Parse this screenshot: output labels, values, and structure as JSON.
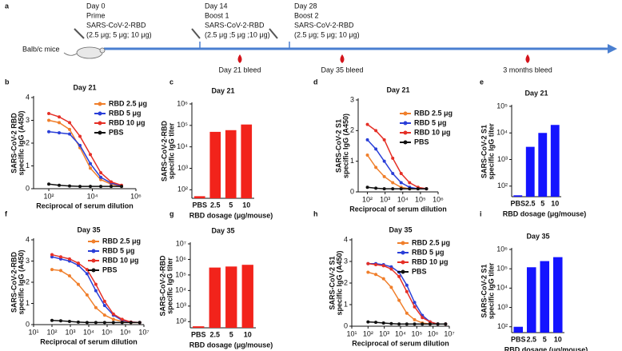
{
  "timeline": {
    "panel": "a",
    "subject": "Balb/c mice",
    "events": [
      {
        "lines": [
          "Day 0",
          "Prime",
          "SARS-CoV-2-RBD",
          "(2.5 μg; 5 μg; 10 μg)"
        ]
      },
      {
        "lines": [
          "Day 14",
          "Boost 1",
          "SARS-CoV-2-RBD",
          "(2.5 μg ;5 μg ;10 μg)"
        ]
      },
      {
        "lines": [
          "Day 28",
          "Boost 2",
          "SARS-CoV-2-RBD",
          "(2.5 μg; 5 μg; 10 μg)"
        ]
      }
    ],
    "bleeds": [
      "Day 21 bleed",
      "Day 35 bleed",
      "3 months bleed"
    ]
  },
  "chart_data": [
    {
      "type": "line",
      "panel": "b",
      "title": "Day 21",
      "ylabel": [
        "SARS-CoV-2 RBD",
        "specific IgG (A450)"
      ],
      "xlabel": "Reciprocal of serum dilution",
      "xscale": "log",
      "xlim": [
        20,
        1000000
      ],
      "xticks": [
        {
          "value": 100,
          "label": "10²"
        },
        {
          "value": 10000,
          "label": "10⁴"
        },
        {
          "value": 1000000,
          "label": "10⁶"
        }
      ],
      "ylim": [
        0,
        4
      ],
      "yticks": [
        0,
        1,
        2,
        3,
        4
      ],
      "x": [
        100,
        300,
        900,
        2700,
        8100,
        24300,
        72900,
        218700
      ],
      "series": [
        {
          "name": "RBD 2.5 μg",
          "color": "#f07f2b",
          "values": [
            3.0,
            2.9,
            2.6,
            1.8,
            0.9,
            0.4,
            0.2,
            0.1
          ]
        },
        {
          "name": "RBD 5 μg",
          "color": "#2a3fd8",
          "values": [
            2.5,
            2.45,
            2.4,
            1.9,
            1.1,
            0.5,
            0.25,
            0.12
          ]
        },
        {
          "name": "RBD 10 μg",
          "color": "#e53027",
          "values": [
            3.3,
            3.15,
            2.9,
            2.3,
            1.5,
            0.7,
            0.3,
            0.15
          ]
        },
        {
          "name": "PBS",
          "color": "#111111",
          "values": [
            0.2,
            0.15,
            0.12,
            0.1,
            0.1,
            0.1,
            0.1,
            0.1
          ]
        }
      ]
    },
    {
      "type": "bar",
      "panel": "c",
      "title": "Day 21",
      "ylabel": [
        "SARS-CoV-2-RBD",
        "specific IgG titer"
      ],
      "xlabel": "RBD dosage (μg/mouse)",
      "yscale": "log",
      "ylim": [
        40,
        1000000
      ],
      "yticks": [
        {
          "value": 100,
          "label": "10²"
        },
        {
          "value": 1000,
          "label": "10³"
        },
        {
          "value": 10000,
          "label": "10⁴"
        },
        {
          "value": 100000,
          "label": "10⁵"
        },
        {
          "value": 1000000,
          "label": "10⁶"
        }
      ],
      "categories": [
        "PBS",
        "2.5",
        "5",
        "10"
      ],
      "values": [
        50,
        50000,
        60000,
        110000
      ],
      "color": "#f2231b"
    },
    {
      "type": "line",
      "panel": "d",
      "title": "Day 21",
      "ylabel": [
        "SARS-CoV-2 S1",
        "specific IgG (A450)"
      ],
      "xlabel": "Reciprocal of serum dilution",
      "xscale": "log",
      "xlim": [
        30,
        1000000
      ],
      "xticks": [
        {
          "value": 100,
          "label": "10²"
        },
        {
          "value": 1000,
          "label": "10³"
        },
        {
          "value": 10000,
          "label": "10⁴"
        },
        {
          "value": 100000,
          "label": "10⁵"
        },
        {
          "value": 1000000,
          "label": "10⁶"
        }
      ],
      "ylim": [
        0,
        3
      ],
      "yticks": [
        0,
        1,
        2,
        3
      ],
      "x": [
        100,
        300,
        900,
        2700,
        8100,
        24300,
        72900,
        218700
      ],
      "series": [
        {
          "name": "RBD 2.5 μg",
          "color": "#f07f2b",
          "values": [
            1.2,
            0.8,
            0.5,
            0.3,
            0.15,
            0.1,
            0.1,
            0.1
          ]
        },
        {
          "name": "RBD 5 μg",
          "color": "#2a3fd8",
          "values": [
            1.7,
            1.4,
            1.0,
            0.6,
            0.3,
            0.15,
            0.1,
            0.1
          ]
        },
        {
          "name": "RBD 10 μg",
          "color": "#e53027",
          "values": [
            2.2,
            2.0,
            1.7,
            1.1,
            0.6,
            0.3,
            0.15,
            0.1
          ]
        },
        {
          "name": "PBS",
          "color": "#111111",
          "values": [
            0.15,
            0.12,
            0.1,
            0.1,
            0.1,
            0.1,
            0.1,
            0.1
          ]
        }
      ]
    },
    {
      "type": "bar",
      "panel": "e",
      "title": "Day 21",
      "ylabel": [
        "SARS-CoV-2 S1",
        "specific IgG titer"
      ],
      "xlabel": "RBD dosage (μg/mouse)",
      "yscale": "log",
      "ylim": [
        40,
        100000
      ],
      "yticks": [
        {
          "value": 100,
          "label": "10²"
        },
        {
          "value": 1000,
          "label": "10³"
        },
        {
          "value": 10000,
          "label": "10⁴"
        },
        {
          "value": 100000,
          "label": "10⁵"
        }
      ],
      "categories": [
        "PBS",
        "2.5",
        "5",
        "10"
      ],
      "values": [
        45,
        3000,
        10000,
        20000
      ],
      "color": "#1414ff"
    },
    {
      "type": "line",
      "panel": "f",
      "title": "Day 35",
      "ylabel": [
        "SARS-CoV-2-RBD",
        "specific IgG (A450)"
      ],
      "xlabel": "Reciprocal of serum dilution",
      "xscale": "log",
      "xlim": [
        10,
        10000000
      ],
      "xticks": [
        {
          "value": 10,
          "label": "10¹"
        },
        {
          "value": 100,
          "label": "10²"
        },
        {
          "value": 1000,
          "label": "10³"
        },
        {
          "value": 10000,
          "label": "10⁴"
        },
        {
          "value": 100000,
          "label": "10⁵"
        },
        {
          "value": 1000000,
          "label": "10⁶"
        },
        {
          "value": 10000000,
          "label": "10⁷"
        }
      ],
      "ylim": [
        0,
        4
      ],
      "yticks": [
        0,
        1,
        2,
        3,
        4
      ],
      "x": [
        100,
        300,
        900,
        2700,
        8100,
        24300,
        72900,
        218700,
        656100,
        1968300,
        5904900
      ],
      "series": [
        {
          "name": "RBD 2.5 μg",
          "color": "#f07f2b",
          "values": [
            2.6,
            2.55,
            2.3,
            1.9,
            1.4,
            0.8,
            0.45,
            0.25,
            0.15,
            0.1,
            0.1
          ]
        },
        {
          "name": "RBD 5 μg",
          "color": "#2a3fd8",
          "values": [
            3.2,
            3.1,
            3.0,
            2.8,
            2.4,
            1.6,
            0.9,
            0.45,
            0.2,
            0.12,
            0.1
          ]
        },
        {
          "name": "RBD 10 μg",
          "color": "#e53027",
          "values": [
            3.3,
            3.2,
            3.1,
            2.9,
            2.6,
            1.9,
            1.1,
            0.5,
            0.25,
            0.12,
            0.1
          ]
        },
        {
          "name": "PBS",
          "color": "#111111",
          "values": [
            0.2,
            0.18,
            0.15,
            0.12,
            0.1,
            0.1,
            0.1,
            0.1,
            0.1,
            0.1,
            0.1
          ]
        }
      ]
    },
    {
      "type": "bar",
      "panel": "g",
      "title": "Day 35",
      "ylabel": [
        "SARS-CoV-2-RBD",
        "specific IgG titer"
      ],
      "xlabel": "RBD dosage (μg/mouse)",
      "yscale": "log",
      "ylim": [
        40,
        10000000
      ],
      "yticks": [
        {
          "value": 100,
          "label": "10²"
        },
        {
          "value": 1000,
          "label": "10³"
        },
        {
          "value": 10000,
          "label": "10⁴"
        },
        {
          "value": 100000,
          "label": "10⁵"
        },
        {
          "value": 1000000,
          "label": "10⁶"
        },
        {
          "value": 10000000,
          "label": "10⁷"
        }
      ],
      "categories": [
        "PBS",
        "2.5",
        "5",
        "10"
      ],
      "values": [
        50,
        300000,
        350000,
        450000
      ],
      "color": "#f2231b"
    },
    {
      "type": "line",
      "panel": "h",
      "title": "Day 35",
      "ylabel": [
        "SARS-CoV-2 S1",
        "specific IgG (A450)"
      ],
      "xlabel": "Reciprocal of serum dilution",
      "xscale": "log",
      "xlim": [
        10,
        10000000
      ],
      "xticks": [
        {
          "value": 10,
          "label": "10¹"
        },
        {
          "value": 100,
          "label": "10²"
        },
        {
          "value": 1000,
          "label": "10³"
        },
        {
          "value": 10000,
          "label": "10⁴"
        },
        {
          "value": 100000,
          "label": "10⁵"
        },
        {
          "value": 1000000,
          "label": "10⁶"
        },
        {
          "value": 10000000,
          "label": "10⁷"
        }
      ],
      "ylim": [
        0,
        4
      ],
      "yticks": [
        0,
        1,
        2,
        3,
        4
      ],
      "x": [
        100,
        300,
        900,
        2700,
        8100,
        24300,
        72900,
        218700,
        656100,
        1968300,
        5904900
      ],
      "series": [
        {
          "name": "RBD 2.5 μg",
          "color": "#f07f2b",
          "values": [
            2.5,
            2.4,
            2.2,
            1.8,
            1.2,
            0.6,
            0.3,
            0.15,
            0.1,
            0.1,
            0.1
          ]
        },
        {
          "name": "RBD 5 μg",
          "color": "#2a3fd8",
          "values": [
            2.9,
            2.9,
            2.85,
            2.75,
            2.5,
            1.9,
            1.1,
            0.5,
            0.2,
            0.1,
            0.1
          ]
        },
        {
          "name": "RBD 10 μg",
          "color": "#e53027",
          "values": [
            2.9,
            2.85,
            2.8,
            2.65,
            2.3,
            1.6,
            0.9,
            0.4,
            0.2,
            0.1,
            0.1
          ]
        },
        {
          "name": "PBS",
          "color": "#111111",
          "values": [
            0.2,
            0.18,
            0.15,
            0.12,
            0.1,
            0.1,
            0.1,
            0.1,
            0.1,
            0.1,
            0.1
          ]
        }
      ]
    },
    {
      "type": "bar",
      "panel": "i",
      "title": "Day 35",
      "ylabel": [
        "SARS-CoV-2 S1",
        "specific IgG titer"
      ],
      "xlabel": "RBD dosage (μg/mouse)",
      "yscale": "log",
      "ylim": [
        50,
        1000000
      ],
      "yticks": [
        {
          "value": 100,
          "label": "10²"
        },
        {
          "value": 1000,
          "label": "10³"
        },
        {
          "value": 10000,
          "label": "10⁴"
        },
        {
          "value": 100000,
          "label": "10⁵"
        },
        {
          "value": 1000000,
          "label": "10⁶"
        }
      ],
      "categories": [
        "PBS",
        "2.5",
        "5",
        "10"
      ],
      "values": [
        100,
        120000,
        250000,
        400000
      ],
      "color": "#1414ff"
    }
  ]
}
